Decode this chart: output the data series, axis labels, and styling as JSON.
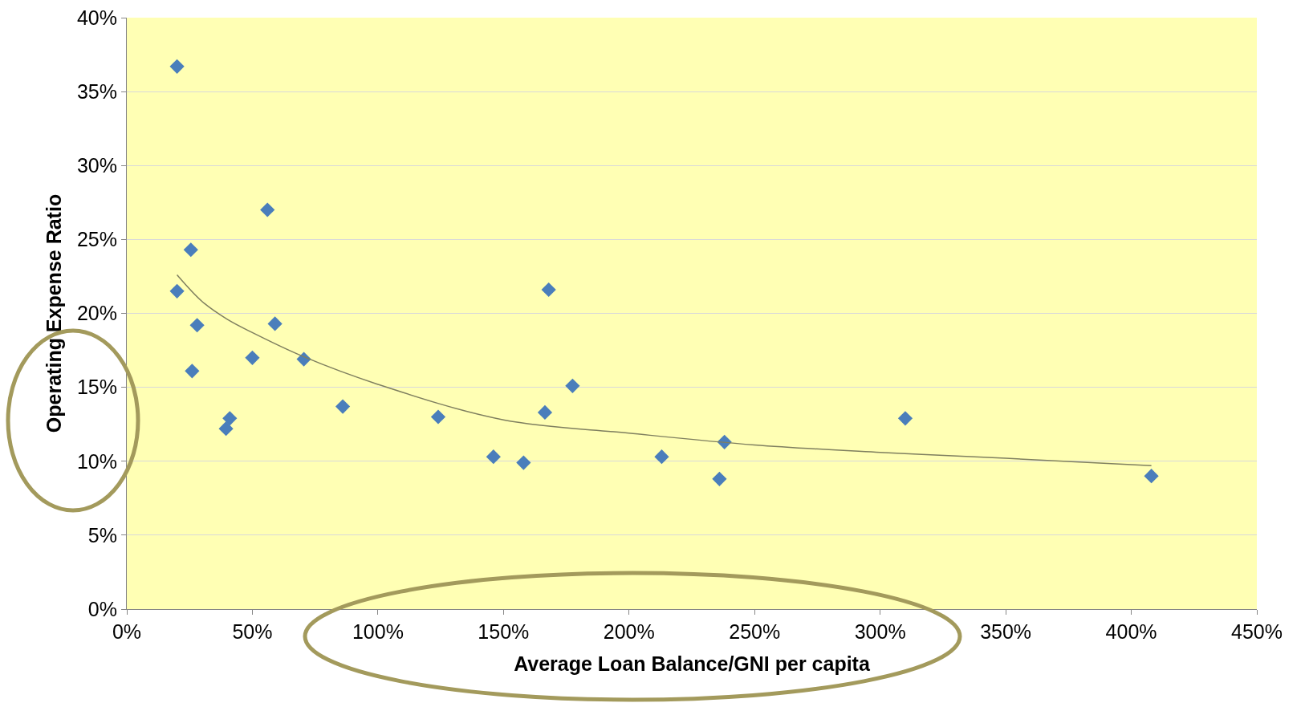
{
  "chart_data": {
    "type": "scatter",
    "xlabel": "Average Loan Balance/GNI per capita",
    "ylabel": "Operating Expense Ratio",
    "xlim": [
      0,
      450
    ],
    "ylim": [
      0,
      40
    ],
    "xticks": [
      {
        "value": 0,
        "label": "0%"
      },
      {
        "value": 50,
        "label": "50%"
      },
      {
        "value": 100,
        "label": "100%"
      },
      {
        "value": 150,
        "label": "150%"
      },
      {
        "value": 200,
        "label": "200%"
      },
      {
        "value": 250,
        "label": "250%"
      },
      {
        "value": 300,
        "label": "300%"
      },
      {
        "value": 350,
        "label": "350%"
      },
      {
        "value": 400,
        "label": "400%"
      },
      {
        "value": 450,
        "label": "450%"
      }
    ],
    "yticks": [
      {
        "value": 0,
        "label": "0%"
      },
      {
        "value": 5,
        "label": "5%"
      },
      {
        "value": 10,
        "label": "10%"
      },
      {
        "value": 15,
        "label": "15%"
      },
      {
        "value": 20,
        "label": "20%"
      },
      {
        "value": 25,
        "label": "25%"
      },
      {
        "value": 30,
        "label": "30%"
      },
      {
        "value": 35,
        "label": "35%"
      },
      {
        "value": 40,
        "label": "40%"
      }
    ],
    "grid": "y",
    "marker": "diamond",
    "series": [
      {
        "type": "scatter",
        "color": "#4a7ebb",
        "x": [
          20,
          25.5,
          20,
          28,
          26,
          56,
          59,
          50,
          70.5,
          41,
          39.5,
          86,
          124,
          146,
          158,
          168,
          166.5,
          177.5,
          213,
          236,
          238,
          310,
          408
        ],
        "values": [
          36.7,
          24.3,
          21.5,
          19.2,
          16.1,
          27,
          19.3,
          17,
          16.9,
          12.9,
          12.2,
          13.7,
          13,
          10.3,
          9.9,
          21.6,
          13.3,
          15.1,
          10.3,
          8.8,
          11.3,
          12.9,
          9
        ]
      },
      {
        "type": "line",
        "color": "#7f7f5f",
        "marker": "none",
        "x": [
          20,
          30,
          40,
          50,
          70,
          100,
          150,
          200,
          250,
          300,
          350,
          408
        ],
        "values": [
          22.6,
          20.8,
          19.6,
          18.7,
          17.1,
          15.2,
          12.8,
          11.9,
          11.1,
          10.6,
          10.2,
          9.7
        ]
      }
    ]
  }
}
